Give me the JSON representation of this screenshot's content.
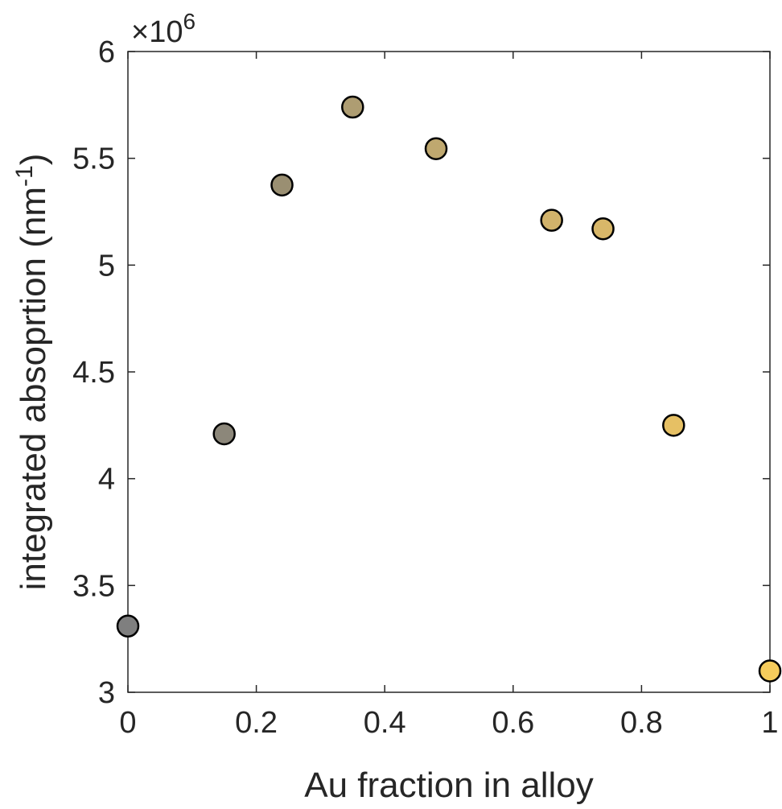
{
  "chart_data": {
    "type": "scatter",
    "xlabel": "Au fraction in alloy",
    "ylabel_main": "integrated absoprtion (nm",
    "ylabel_sup": "-1",
    "ylabel_close": ")",
    "y_multiplier": {
      "symbol": "×10",
      "exponent": "6"
    },
    "xlim": [
      0,
      1
    ],
    "ylim": [
      3,
      6
    ],
    "xticks": [
      0,
      0.2,
      0.4,
      0.6,
      0.8,
      1
    ],
    "xtick_labels": [
      "0",
      "0.2",
      "0.4",
      "0.6",
      "0.8",
      "1"
    ],
    "yticks": [
      3,
      3.5,
      4,
      4.5,
      5,
      5.5,
      6
    ],
    "ytick_labels": [
      "3",
      "3.5",
      "4",
      "4.5",
      "5",
      "5.5",
      "6"
    ],
    "grid": false,
    "points": [
      {
        "x": 0.0,
        "y": 3.31,
        "color": "#7f7f7f"
      },
      {
        "x": 0.15,
        "y": 4.21,
        "color": "#8c877a"
      },
      {
        "x": 0.24,
        "y": 5.375,
        "color": "#9a8f72"
      },
      {
        "x": 0.35,
        "y": 5.74,
        "color": "#ae9d72"
      },
      {
        "x": 0.48,
        "y": 5.545,
        "color": "#bfa86f"
      },
      {
        "x": 0.66,
        "y": 5.21,
        "color": "#d2b36b"
      },
      {
        "x": 0.74,
        "y": 5.17,
        "color": "#d8b769"
      },
      {
        "x": 0.85,
        "y": 4.25,
        "color": "#e6c064"
      },
      {
        "x": 1.0,
        "y": 3.1,
        "color": "#f6cc5c"
      }
    ]
  }
}
